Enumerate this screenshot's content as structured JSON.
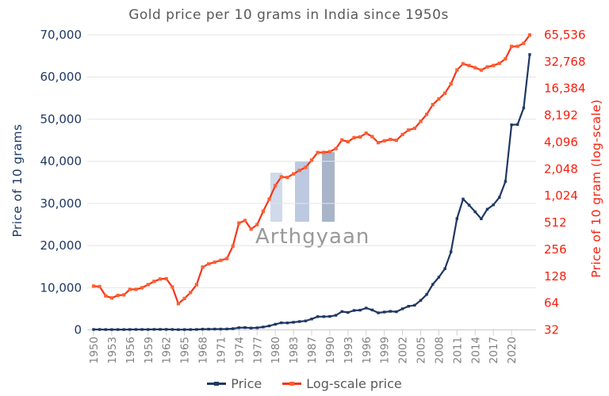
{
  "title": "Gold price per 10 grams in India since 1950s",
  "watermark": {
    "text": "Arthgyaan"
  },
  "legend": {
    "items": [
      {
        "label": "Price",
        "line_color": "#1f3864",
        "marker_color": "#1f3864"
      },
      {
        "label": "Log-scale price",
        "line_color": "#f5341c",
        "marker_color": "#ff5f2e"
      }
    ],
    "position": "bottom-center"
  },
  "chart_data": {
    "type": "line",
    "title": "Gold price per 10 grams in India since 1950s",
    "x": [
      1950,
      1951,
      1952,
      1953,
      1954,
      1955,
      1956,
      1957,
      1958,
      1959,
      1960,
      1961,
      1962,
      1963,
      1964,
      1965,
      1966,
      1967,
      1968,
      1969,
      1970,
      1971,
      1972,
      1973,
      1974,
      1975,
      1976,
      1977,
      1978,
      1979,
      1980,
      1981,
      1982,
      1983,
      1984,
      1985,
      1987,
      1988,
      1989,
      1990,
      1991,
      1992,
      1993,
      1994,
      1995,
      1996,
      1997,
      1998,
      1999,
      2000,
      2001,
      2002,
      2003,
      2004,
      2005,
      2006,
      2007,
      2008,
      2009,
      2010,
      2011,
      2012,
      2013,
      2014,
      2015,
      2016,
      2017,
      2018,
      2019,
      2020,
      2021,
      2022,
      2023
    ],
    "series": [
      {
        "name": "Price",
        "axis": "left",
        "line_color": "#1f3864",
        "marker_color": "#1f3864",
        "values": [
          99,
          98,
          77,
          73,
          78,
          79,
          91,
          91,
          95,
          103,
          112,
          119,
          120,
          97,
          63,
          72,
          84,
          103,
          162,
          176,
          184,
          193,
          202,
          279,
          506,
          540,
          432,
          486,
          685,
          937,
          1330,
          1670,
          1645,
          1800,
          1970,
          2130,
          2570,
          3130,
          3140,
          3200,
          3466,
          4334,
          4140,
          4598,
          4680,
          5160,
          4725,
          4045,
          4234,
          4400,
          4300,
          4990,
          5600,
          5850,
          7000,
          8400,
          10800,
          12500,
          14500,
          18500,
          26400,
          31050,
          29600,
          28007,
          26344,
          28624,
          29668,
          31438,
          35220,
          48651,
          48720,
          52670,
          65330
        ]
      },
      {
        "name": "Log-scale price",
        "axis": "right",
        "line_color": "#f5341c",
        "marker_color": "#ff5f2e",
        "values": [
          99,
          98,
          77,
          73,
          78,
          79,
          91,
          91,
          95,
          103,
          112,
          119,
          120,
          97,
          63,
          72,
          84,
          103,
          162,
          176,
          184,
          193,
          202,
          279,
          506,
          540,
          432,
          486,
          685,
          937,
          1330,
          1670,
          1645,
          1800,
          1970,
          2130,
          2570,
          3130,
          3140,
          3200,
          3466,
          4334,
          4140,
          4598,
          4680,
          5160,
          4725,
          4045,
          4234,
          4400,
          4300,
          4990,
          5600,
          5850,
          7000,
          8400,
          10800,
          12500,
          14500,
          18500,
          26400,
          31050,
          29600,
          28007,
          26344,
          28624,
          29668,
          31438,
          35220,
          48651,
          48720,
          52670,
          65330
        ]
      }
    ],
    "left_axis": {
      "label": "Price of 10 grams",
      "scale": "linear",
      "min": 0,
      "max": 70000,
      "ticks": [
        "70,000",
        "60,000",
        "50,000",
        "40,000",
        "30,000",
        "20,000",
        "10,000",
        "0"
      ],
      "color": "#1f3864"
    },
    "right_axis": {
      "label": "Price of 10 gram (log-scale)",
      "scale": "log2",
      "min": 32,
      "max": 65536,
      "ticks": [
        "65,536",
        "32,768",
        "16,384",
        "8,192",
        "4,096",
        "2,048",
        "1,024",
        "512",
        "256",
        "128",
        "64",
        "32"
      ],
      "color": "#f81e0e"
    },
    "x_axis": {
      "tick_labels": [
        "1950",
        "1953",
        "1956",
        "1959",
        "1962",
        "1965",
        "1968",
        "1971",
        "1974",
        "1977",
        "1980",
        "1983",
        "1987",
        "1990",
        "1993",
        "1996",
        "1999",
        "2002",
        "2005",
        "2008",
        "2011",
        "2014",
        "2017",
        "2020"
      ],
      "label_every_n_points": 3,
      "label_color": "#808080"
    },
    "grid": "horizontal",
    "legend_position": "bottom"
  }
}
